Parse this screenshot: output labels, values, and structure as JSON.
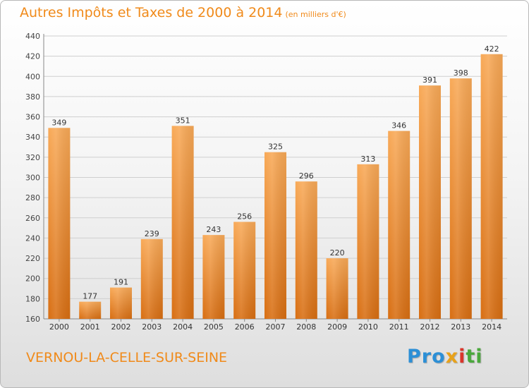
{
  "header": {
    "title": "Autres Impôts et Taxes de 2000 à 2014",
    "subtitle": "(en milliers d'€)"
  },
  "footer": {
    "commune": "VERNOU-LA-CELLE-SUR-SEINE",
    "logo": [
      "Pro",
      "x",
      "i",
      "ti"
    ]
  },
  "colors": {
    "accent": "#f08a1a",
    "bar_top": "#f7a54f",
    "bar_bottom": "#d96f13"
  },
  "chart_data": {
    "type": "bar",
    "title": "Autres Impôts et Taxes de 2000 à 2014",
    "subtitle": "(en milliers d'€)",
    "categories": [
      "2000",
      "2001",
      "2002",
      "2003",
      "2004",
      "2005",
      "2006",
      "2007",
      "2008",
      "2009",
      "2010",
      "2011",
      "2012",
      "2013",
      "2014"
    ],
    "values": [
      349,
      177,
      191,
      239,
      351,
      243,
      256,
      325,
      296,
      220,
      313,
      346,
      391,
      398,
      422
    ],
    "ylim": [
      160,
      440
    ],
    "yticks": [
      160,
      180,
      200,
      220,
      240,
      260,
      280,
      300,
      320,
      340,
      360,
      380,
      400,
      420,
      440
    ],
    "grid": true,
    "data_labels": true
  }
}
